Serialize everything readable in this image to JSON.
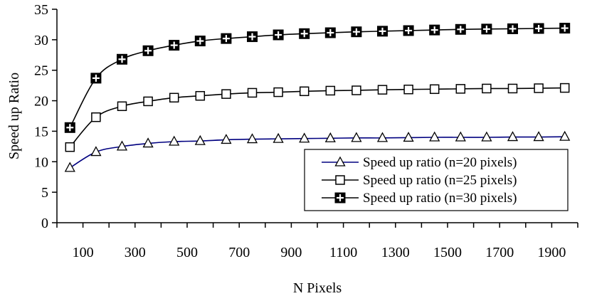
{
  "chart_data": {
    "type": "line",
    "xlabel": "N Pixels",
    "ylabel": "Speed up Ratio",
    "ylim": [
      0,
      35
    ],
    "y_ticks": [
      0,
      5,
      10,
      15,
      20,
      25,
      30,
      35
    ],
    "x_tick_labels": [
      "100",
      "300",
      "500",
      "700",
      "900",
      "1100",
      "1300",
      "1500",
      "1700",
      "1900"
    ],
    "x": [
      50,
      150,
      250,
      350,
      450,
      550,
      650,
      750,
      850,
      950,
      1050,
      1150,
      1250,
      1350,
      1450,
      1550,
      1650,
      1750,
      1850,
      1950
    ],
    "grid": false,
    "legend_position": "lower-right, inside plot",
    "series": [
      {
        "name": "Speed up ratio (n=20 pixels)",
        "marker": "triangle",
        "color": "#000080",
        "values": [
          9.0,
          11.6,
          12.5,
          13.0,
          13.3,
          13.4,
          13.6,
          13.7,
          13.75,
          13.8,
          13.85,
          13.9,
          13.9,
          13.95,
          14.0,
          14.0,
          14.0,
          14.05,
          14.05,
          14.1
        ]
      },
      {
        "name": "Speed up ratio (n=25 pixels)",
        "marker": "square",
        "color": "#000000",
        "values": [
          12.4,
          17.3,
          19.1,
          19.9,
          20.5,
          20.8,
          21.1,
          21.3,
          21.4,
          21.55,
          21.65,
          21.7,
          21.8,
          21.85,
          21.9,
          21.95,
          22.0,
          22.0,
          22.05,
          22.1
        ]
      },
      {
        "name": "Speed up ratio (n=30 pixels)",
        "marker": "square-plus",
        "color": "#000000",
        "values": [
          15.6,
          23.7,
          26.8,
          28.2,
          29.1,
          29.8,
          30.2,
          30.5,
          30.8,
          31.0,
          31.15,
          31.3,
          31.4,
          31.5,
          31.6,
          31.7,
          31.75,
          31.8,
          31.85,
          31.9
        ]
      }
    ]
  }
}
